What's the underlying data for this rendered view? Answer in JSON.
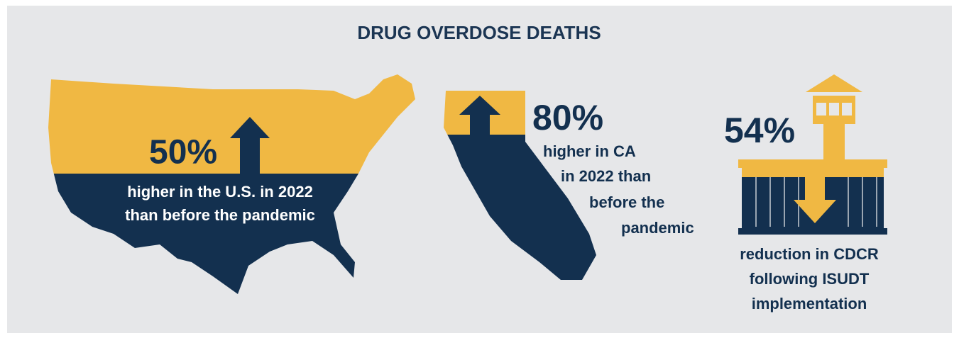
{
  "title": "DRUG OVERDOSE DEATHS",
  "stats": [
    {
      "value": "50%",
      "lines": [
        "higher in the U.S. in 2022",
        "than before the pandemic"
      ]
    },
    {
      "value": "80%",
      "lines": [
        "higher in CA",
        "in 2022 than",
        "before the",
        "pandemic"
      ]
    },
    {
      "value": "54%",
      "lines": [
        "reduction in CDCR",
        "following ISUDT",
        "implementation"
      ]
    }
  ]
}
